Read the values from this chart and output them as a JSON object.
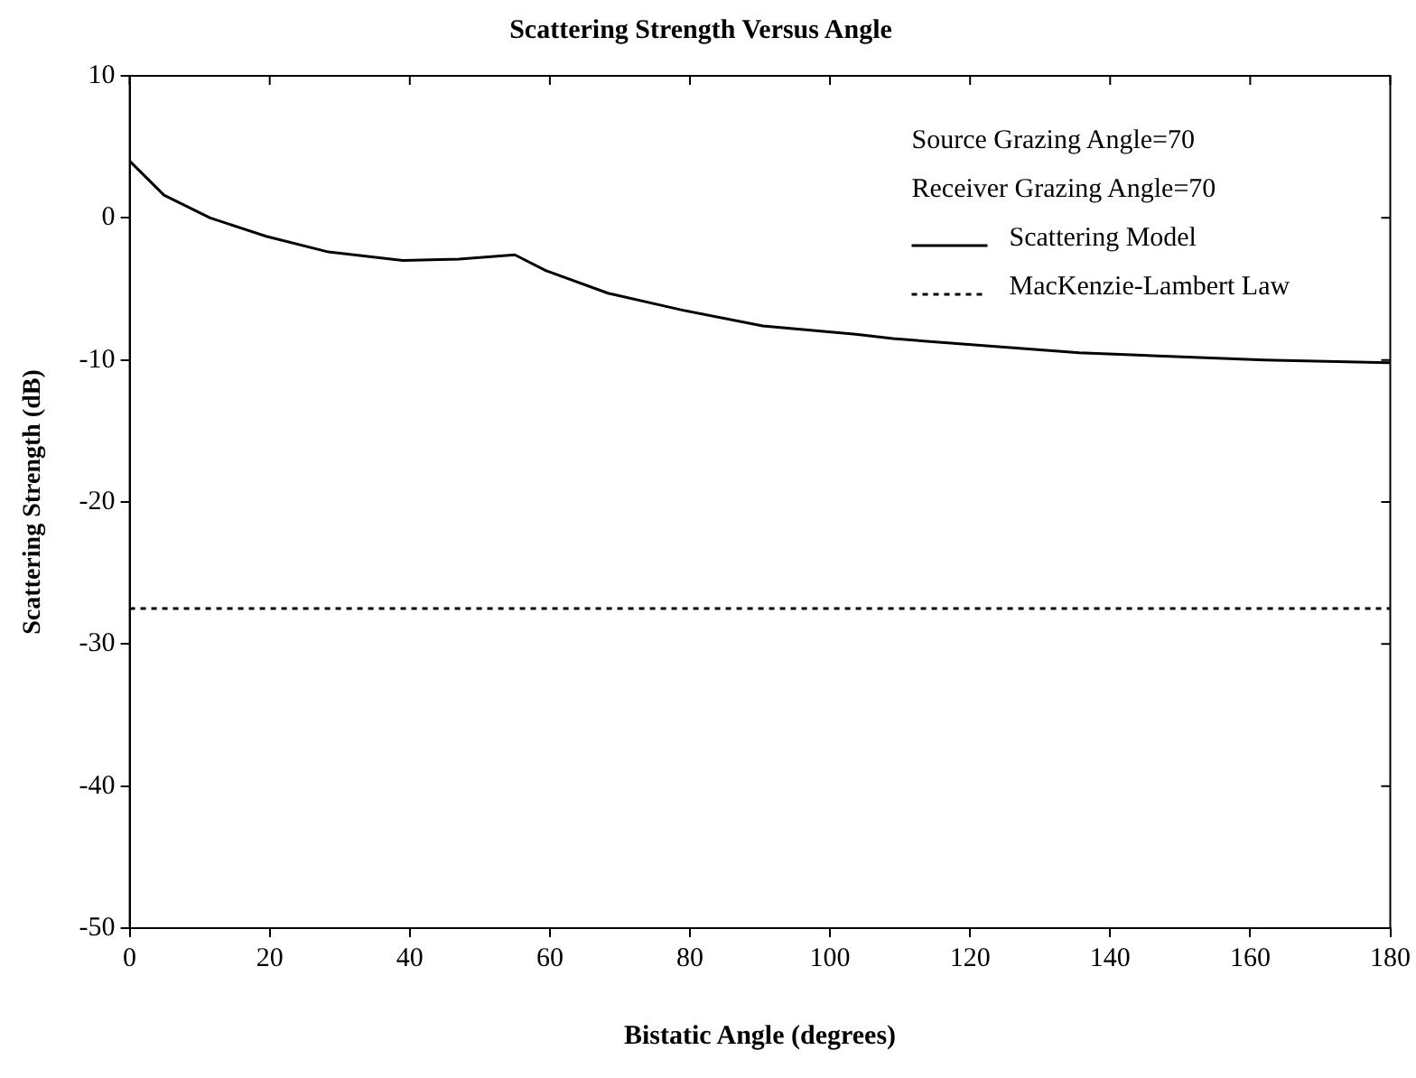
{
  "chart_data": {
    "type": "line",
    "title": "Scattering Strength Versus Angle",
    "xlabel": "Bistatic Angle (degrees)",
    "ylabel": "Scattering Strength (dB)",
    "xlim": [
      0,
      180
    ],
    "xticks": [
      0,
      20,
      40,
      60,
      80,
      100,
      120,
      140,
      160,
      180
    ],
    "ylim": [
      -50,
      10
    ],
    "yticks": [
      -50,
      -40,
      -30,
      -20,
      -10,
      0,
      10
    ],
    "grid": false,
    "legend": "top right",
    "marker": "none",
    "annotations": [
      "Source Grazing Angle=70",
      "Receiver Grazing Angle=70"
    ],
    "series": [
      {
        "name": "Scattering Model",
        "color": "#000000",
        "line_style": "solid",
        "x": [
          0,
          4.9,
          11.5,
          19.5,
          28.4,
          39,
          47,
          55,
          59.4,
          68.3,
          79,
          90.4,
          103.7,
          109,
          135.6,
          162,
          180
        ],
        "values": [
          4,
          1.6,
          0,
          -1.3,
          -2.4,
          -3.0,
          -2.9,
          -2.6,
          -3.7,
          -5.3,
          -6.5,
          -7.6,
          -8.2,
          -8.5,
          -9.5,
          -10.0,
          -10.2
        ]
      },
      {
        "name": "MacKenzie-Lambert Law",
        "color": "#000000",
        "line_style": "dotted",
        "x": [
          0,
          180
        ],
        "values": [
          -27.5,
          -27.5
        ]
      }
    ]
  }
}
